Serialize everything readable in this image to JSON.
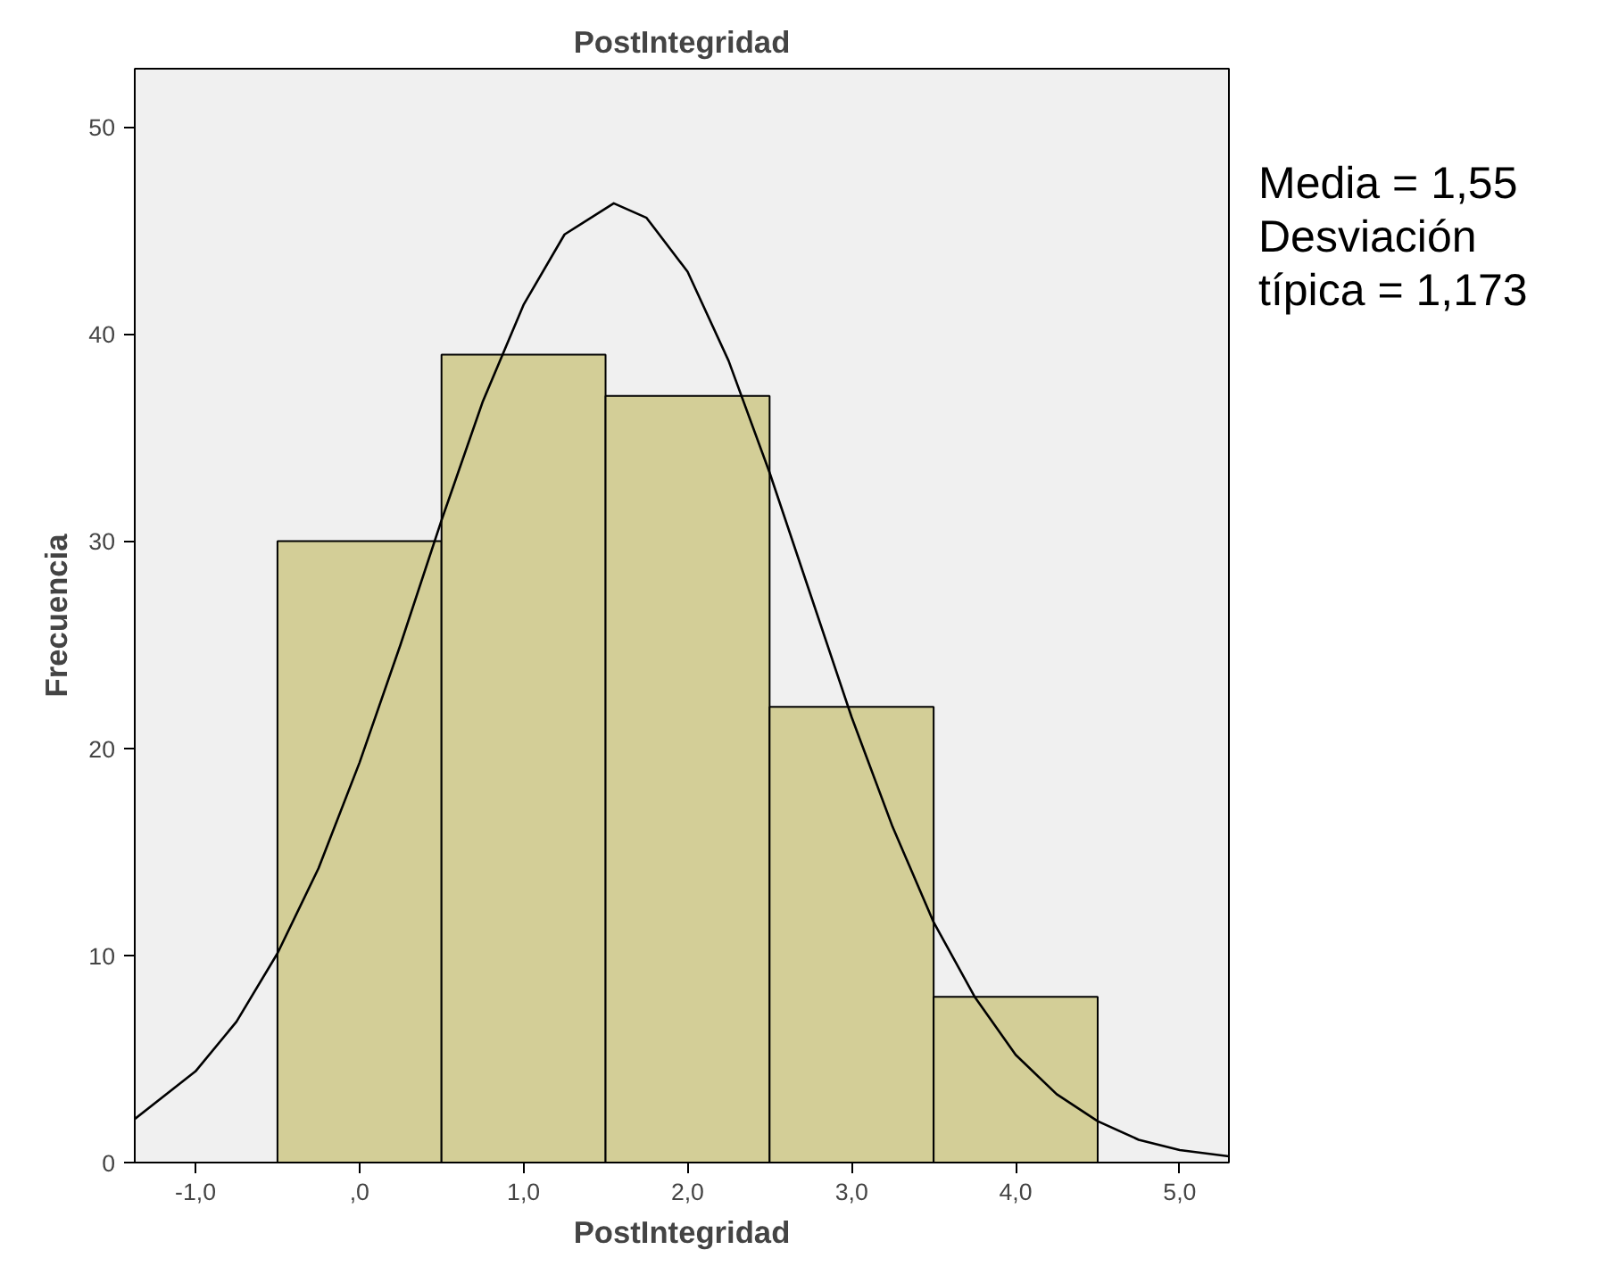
{
  "chart_data": {
    "type": "histogram",
    "title": "PostIntegridad",
    "xlabel": "PostIntegridad",
    "ylabel": "Frecuencia",
    "bins": [
      -0.5,
      0.5,
      1.5,
      2.5,
      3.5,
      4.5
    ],
    "values": [
      30,
      39,
      37,
      22,
      8
    ],
    "color": "#d3ce97",
    "series": [
      {
        "type": "line",
        "color": "#000000",
        "x": [
          -1.37,
          -1.0,
          -0.75,
          -0.5,
          -0.25,
          0,
          0.25,
          0.5,
          0.75,
          1.0,
          1.25,
          1.55,
          1.75,
          2.0,
          2.25,
          2.5,
          2.75,
          3.0,
          3.25,
          3.5,
          3.75,
          4.0,
          4.25,
          4.5,
          4.75,
          5.0,
          5.3
        ],
        "values": [
          2.1,
          4.4,
          6.8,
          10.1,
          14.2,
          19.3,
          25.0,
          31.0,
          36.7,
          41.4,
          44.8,
          46.3,
          45.6,
          43.0,
          38.7,
          33.3,
          27.4,
          21.5,
          16.2,
          11.6,
          8.0,
          5.2,
          3.3,
          2.0,
          1.1,
          0.6,
          0.3
        ]
      }
    ],
    "xlim": [
      -1.37,
      5.3
    ],
    "ylim": [
      0,
      52.8
    ],
    "xticks": [
      {
        "value": -1,
        "label": "-1,0"
      },
      {
        "value": 0,
        "label": ",0"
      },
      {
        "value": 1,
        "label": "1,0"
      },
      {
        "value": 2,
        "label": "2,0"
      },
      {
        "value": 3,
        "label": "3,0"
      },
      {
        "value": 4,
        "label": "4,0"
      },
      {
        "value": 5,
        "label": "5,0"
      }
    ],
    "yticks": [
      0,
      10,
      20,
      30,
      40,
      50
    ],
    "annotations": [
      "Media = 1,55",
      "Desviación típica = 1,173"
    ]
  }
}
